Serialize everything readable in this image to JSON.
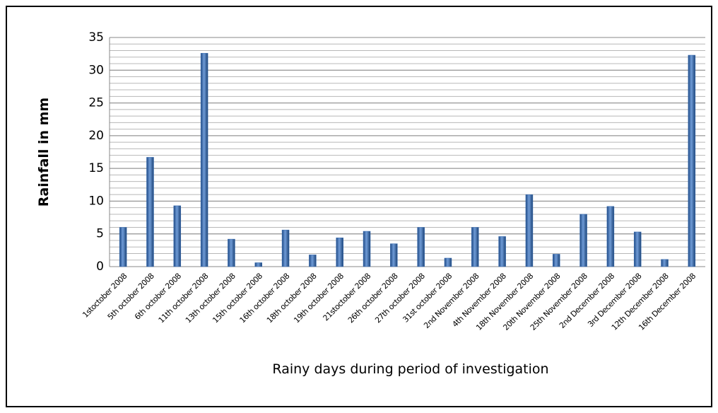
{
  "chart_data": {
    "type": "bar",
    "y_axis_label": "Rainfall in mm",
    "x_axis_label": "Rainy days during period of investigation",
    "categories": [
      "1stoctober 2008",
      "5th october 2008",
      "6th october 2008",
      "11th october 2008",
      "13th october 2008",
      "15th october 2008",
      "16th october 2008",
      "18th october 2008",
      "19th october 2008",
      "21stoctober 2008",
      "26th october 2008",
      "27th october 2008",
      "31st october 2008",
      "2nd November 2008",
      "4th November 2008",
      "18th November 2008",
      "20th November 2008",
      "25th November 2008",
      "2nd December 2008",
      "3rd December 2008",
      "12th December 2008",
      "16th December 2008"
    ],
    "values": [
      6,
      16.7,
      9.3,
      32.6,
      4.2,
      0.6,
      5.6,
      1.8,
      4.4,
      5.4,
      3.5,
      6,
      1.3,
      6,
      4.6,
      11,
      1.9,
      8,
      9.2,
      5.3,
      1.1,
      32.3
    ],
    "color": "#3a6db0",
    "ylim": [
      0,
      35
    ],
    "yticks": [
      0,
      5,
      10,
      15,
      20,
      25,
      30,
      35
    ],
    "grid": true,
    "minor_grid_step": 1
  }
}
